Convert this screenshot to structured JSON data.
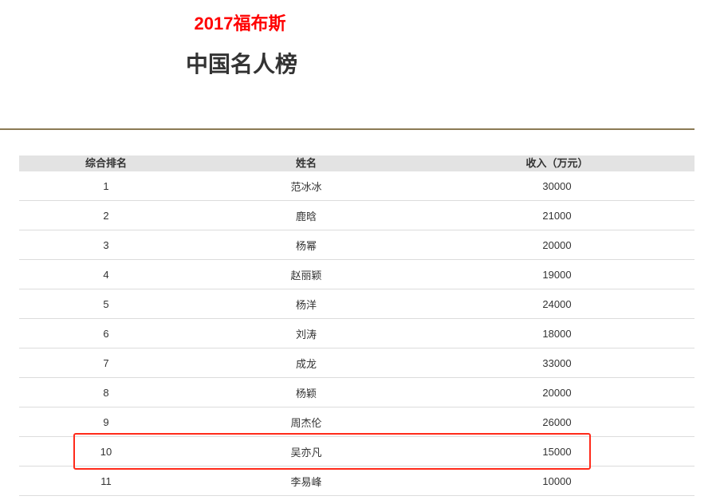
{
  "header": {
    "subtitle": "2017福布斯",
    "title": "中国名人榜"
  },
  "table": {
    "columns": [
      "综合排名",
      "姓名",
      "收入（万元）"
    ],
    "rows": [
      [
        "1",
        "范冰冰",
        "30000"
      ],
      [
        "2",
        "鹿晗",
        "21000"
      ],
      [
        "3",
        "杨幂",
        "20000"
      ],
      [
        "4",
        "赵丽颖",
        "19000"
      ],
      [
        "5",
        "杨洋",
        "24000"
      ],
      [
        "6",
        "刘涛",
        "18000"
      ],
      [
        "7",
        "成龙",
        "33000"
      ],
      [
        "8",
        "杨颖",
        "20000"
      ],
      [
        "9",
        "周杰伦",
        "26000"
      ],
      [
        "10",
        "吴亦凡",
        "15000"
      ],
      [
        "11",
        "李易峰",
        "10000"
      ]
    ],
    "highlighted_row_rank": "10"
  },
  "colors": {
    "subtitle": "#ff0000",
    "rule": "#8b7a55",
    "header_bg": "#e3e3e3",
    "highlight_box": "#ff2a1a"
  }
}
